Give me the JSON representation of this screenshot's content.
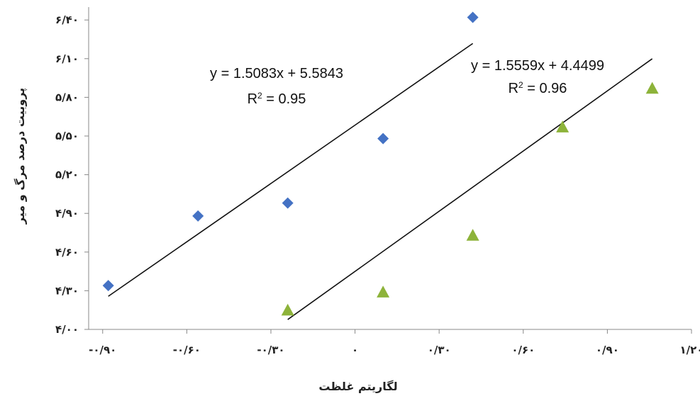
{
  "chart_data": {
    "type": "scatter",
    "xlabel": "لگاریتم غلظت",
    "ylabel": "پروبیت درصد مرگ و میر",
    "xlim": [
      -0.95,
      1.2
    ],
    "ylim": [
      4.0,
      6.5
    ],
    "x_tick_values": [
      -0.9,
      -0.6,
      -0.3,
      0,
      0.3,
      0.6,
      0.9,
      1.2
    ],
    "x_tick_labels": [
      "-۰/۹۰",
      "-۰/۶۰",
      "-۰/۳۰",
      "۰",
      "۰/۳۰",
      "۰/۶۰",
      "۰/۹۰",
      "۱/۲۰"
    ],
    "y_tick_values": [
      4.0,
      4.3,
      4.6,
      4.9,
      5.2,
      5.5,
      5.8,
      6.1,
      6.4
    ],
    "y_tick_labels": [
      "۴/۰۰",
      "۴/۳۰",
      "۴/۶۰",
      "۴/۹۰",
      "۵/۲۰",
      "۵/۵۰",
      "۵/۸۰",
      "۶/۱۰",
      "۶/۴۰"
    ],
    "series": [
      {
        "marker": "diamond",
        "color": "#4472C4",
        "points": [
          {
            "x": -0.88,
            "y": 4.34
          },
          {
            "x": -0.56,
            "y": 4.88
          },
          {
            "x": -0.24,
            "y": 4.98
          },
          {
            "x": 0.1,
            "y": 5.48
          },
          {
            "x": 0.42,
            "y": 6.42
          }
        ],
        "trendline": {
          "slope": 1.5083,
          "intercept": 5.5843,
          "x_range": [
            -0.88,
            0.42
          ]
        },
        "equation": "y = 1.5083x + 5.5843",
        "r2_prefix": "R",
        "r2_suffix": " = 0.95"
      },
      {
        "marker": "triangle",
        "color": "#8DB33A",
        "points": [
          {
            "x": -0.24,
            "y": 4.15
          },
          {
            "x": 0.1,
            "y": 4.29
          },
          {
            "x": 0.42,
            "y": 4.73
          },
          {
            "x": 0.74,
            "y": 5.57
          },
          {
            "x": 1.06,
            "y": 5.87
          }
        ],
        "trendline": {
          "slope": 1.5559,
          "intercept": 4.4499,
          "x_range": [
            -0.24,
            1.06
          ]
        },
        "equation": "y = 1.5559x + 4.4499",
        "r2_prefix": "R",
        "r2_suffix": " = 0.96"
      }
    ]
  }
}
